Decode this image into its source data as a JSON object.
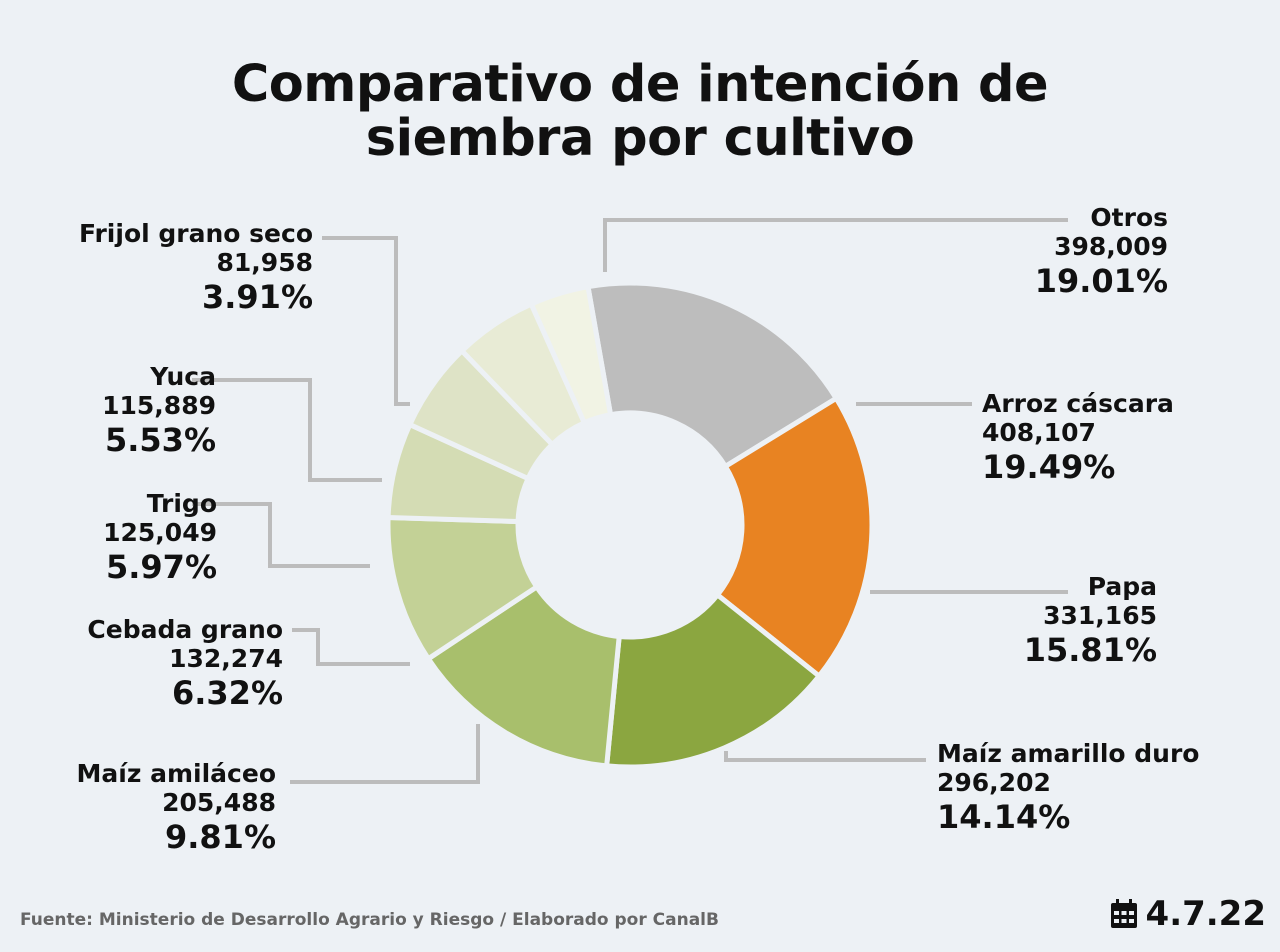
{
  "chart_data": {
    "type": "pie",
    "title_lines": [
      "Comparativo de intención de",
      "siembra por cultivo"
    ],
    "slices": [
      {
        "label": "Otros",
        "value": "398,009",
        "percent": 19.01,
        "percent_label": "19.01%",
        "color": "#bdbdbd"
      },
      {
        "label": "Arroz cáscara",
        "value": "408,107",
        "percent": 19.49,
        "percent_label": "19.49%",
        "color": "#e88322"
      },
      {
        "label": "Papa",
        "value": "331,165",
        "percent": 15.81,
        "percent_label": "15.81%",
        "color": "#8ba640"
      },
      {
        "label": "Maíz amarillo duro",
        "value": "296,202",
        "percent": 14.14,
        "percent_label": "14.14%",
        "color": "#a8bf6c"
      },
      {
        "label": "Maíz amiláceo",
        "value": "205,488",
        "percent": 9.81,
        "percent_label": "9.81%",
        "color": "#c3d196"
      },
      {
        "label": "Cebada grano",
        "value": "132,274",
        "percent": 6.32,
        "percent_label": "6.32%",
        "color": "#d4dcb4"
      },
      {
        "label": "Trigo",
        "value": "125,049",
        "percent": 5.97,
        "percent_label": "5.97%",
        "color": "#dee3c6"
      },
      {
        "label": "Yuca",
        "value": "115,889",
        "percent": 5.53,
        "percent_label": "5.53%",
        "color": "#e8ebd5"
      },
      {
        "label": "Frijol grano seco",
        "value": "81,958",
        "percent": 3.91,
        "percent_label": "3.91%",
        "color": "#f1f3e4"
      }
    ]
  },
  "footer": {
    "source": "Fuente: Ministerio de Desarrollo Agrario y Riesgo / Elaborado por CanalB",
    "date": "4.7.22",
    "date_icon": "calendar-icon"
  }
}
